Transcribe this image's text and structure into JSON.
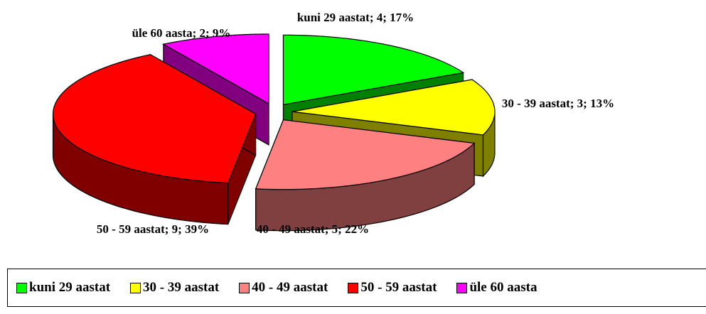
{
  "chart_data": {
    "type": "pie",
    "categories": [
      "kuni 29 aastat",
      "30 - 39 aastat",
      "40 - 49 aastat",
      "50 - 59 aastat",
      "üle 60 aasta"
    ],
    "values": [
      4,
      3,
      5,
      9,
      2
    ],
    "value_labels": [
      "kuni 29 aastat; 4; 17%",
      "30 - 39 aastat; 3; 13%",
      "40 - 49 aastat; 5; 22%",
      "50 - 59 aastat; 9; 39%",
      "üle 60 aasta; 2; 9%"
    ],
    "colors": [
      "#00ff00",
      "#ffff00",
      "#ff8080",
      "#ff0000",
      "#ff00ff"
    ],
    "legend": "bottom"
  }
}
